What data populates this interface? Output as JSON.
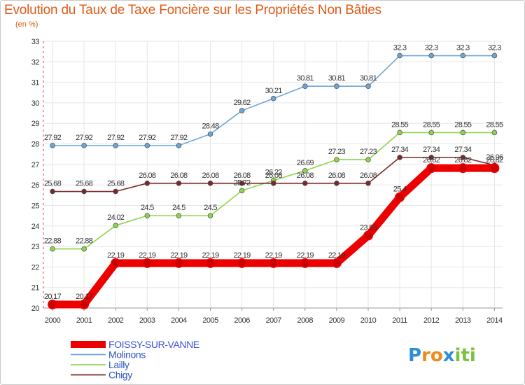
{
  "chart_data": {
    "type": "line",
    "title": "Evolution du Taux de Taxe Foncière sur les Propriétés Non Bâties",
    "ylabel": "(en %)",
    "xlabel": "",
    "categories": [
      "2000",
      "2001",
      "2002",
      "2003",
      "2004",
      "2005",
      "2006",
      "2007",
      "2008",
      "2009",
      "2010",
      "2011",
      "2012",
      "2013",
      "2014"
    ],
    "ylim": [
      20,
      33
    ],
    "yticks": [
      20,
      21,
      22,
      23,
      24,
      25,
      26,
      27,
      28,
      29,
      30,
      31,
      32,
      33
    ],
    "grid": true,
    "legend_position": "bottom-left",
    "series": [
      {
        "name": "Molinons",
        "color": "#6ea6d6",
        "values": [
          27.92,
          27.92,
          27.92,
          27.92,
          27.92,
          28.48,
          29.62,
          30.21,
          30.81,
          30.81,
          30.81,
          32.3,
          32.3,
          32.3,
          32.3
        ],
        "labels": [
          "27.92",
          "27.92",
          "27.92",
          "27.92",
          "27.92",
          "28.48",
          "29.62",
          "30.21",
          "30.81",
          "30.81",
          "30.81",
          "32.3",
          "32.3",
          "32.3",
          "32.3"
        ]
      },
      {
        "name": "Lailly",
        "color": "#8ed44c",
        "values": [
          22.88,
          22.88,
          24.02,
          24.5,
          24.5,
          24.5,
          25.72,
          26.22,
          26.69,
          27.23,
          27.23,
          28.55,
          28.55,
          28.55,
          28.55
        ],
        "labels": [
          "22.88",
          "22.88",
          "24.02",
          "24.5",
          "24.5",
          "24.5",
          "25.72",
          "26.22",
          "26.69",
          "27.23",
          "27.23",
          "28.55",
          "28.55",
          "28.55",
          "28.55"
        ]
      },
      {
        "name": "Chigy",
        "color": "#7a2828",
        "values": [
          25.68,
          25.68,
          25.68,
          26.08,
          26.08,
          26.08,
          26.08,
          26.08,
          26.08,
          26.08,
          26.08,
          27.34,
          27.34,
          27.34,
          26.96
        ],
        "labels": [
          "25.68",
          "25.68",
          "25.68",
          "26.08",
          "26.08",
          "26.08",
          "26.08",
          "26.08",
          "26.08",
          "26.08",
          "26.08",
          "27.34",
          "27.34",
          "27.34",
          "26.96"
        ]
      },
      {
        "name": "FOISSY-SUR-VANNE",
        "color": "#ee0000",
        "values": [
          20.17,
          20.17,
          22.19,
          22.19,
          22.19,
          22.19,
          22.19,
          22.19,
          22.19,
          22.19,
          23.53,
          25.4,
          26.82,
          26.82,
          26.82
        ],
        "labels": [
          "20.17",
          "20.17",
          "22.19",
          "22.19",
          "22.19",
          "22.19",
          "22.19",
          "22.19",
          "22.19",
          "22.19",
          "23.53",
          "25.4",
          "26.82",
          "26.82",
          "26.82"
        ]
      }
    ],
    "legend_order": [
      "FOISSY-SUR-VANNE",
      "Molinons",
      "Lailly",
      "Chigy"
    ]
  },
  "branding": {
    "logo_letters": [
      "P",
      "r",
      "o",
      "x",
      "i",
      "t",
      "i"
    ],
    "logo_colors": [
      "#2c8fd6",
      "#f08a1c",
      "#f08a1c",
      "#2c8fd6",
      "#7cc142",
      "#7cc142",
      "#7cc142"
    ]
  }
}
